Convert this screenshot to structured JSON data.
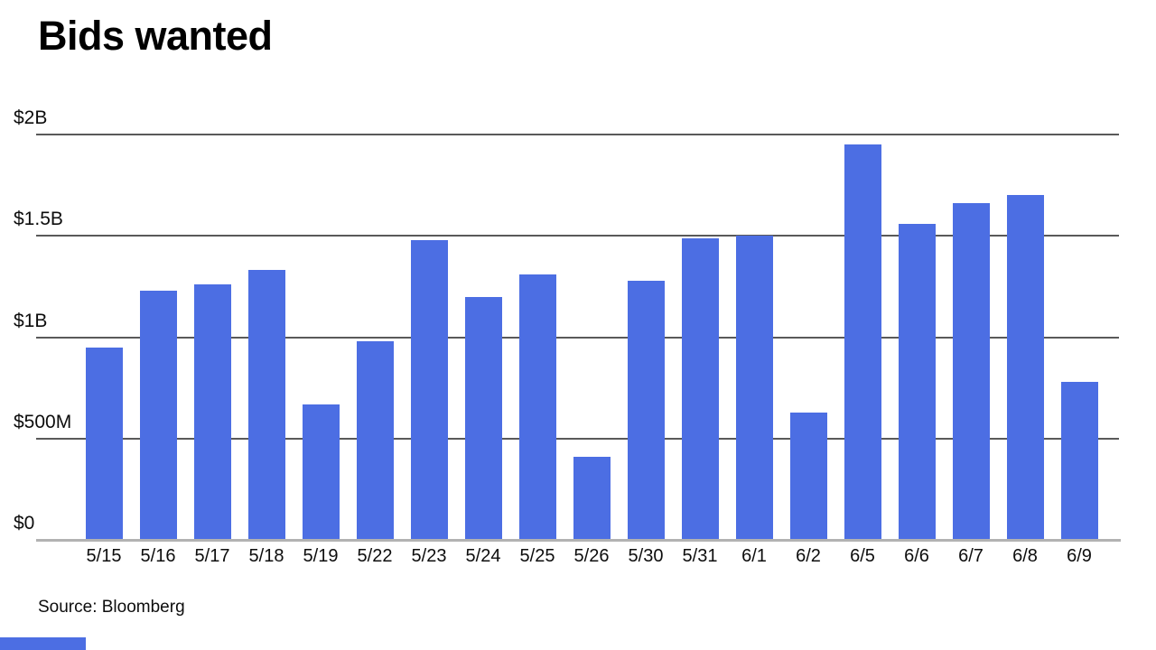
{
  "title": "Bids wanted",
  "source": "Source: Bloomberg",
  "colors": {
    "bar": "#4c6ee3",
    "gridline": "#595959",
    "axis_line": "#b2b2b2",
    "text": "#0d0d0d",
    "accent_strip": "#4c6ee3"
  },
  "chart_data": {
    "type": "bar",
    "title": "Bids wanted",
    "xlabel": "",
    "ylabel": "",
    "legend": "none",
    "grid": "horizontal",
    "ylim_millions": [
      0,
      2000
    ],
    "y_ticks": [
      {
        "label": "$2B",
        "value_millions": 2000
      },
      {
        "label": "$1.5B",
        "value_millions": 1500
      },
      {
        "label": "$1B",
        "value_millions": 1000
      },
      {
        "label": "$500M",
        "value_millions": 500
      },
      {
        "label": "$0",
        "value_millions": 0
      }
    ],
    "categories": [
      "5/15",
      "5/16",
      "5/17",
      "5/18",
      "5/19",
      "5/22",
      "5/23",
      "5/24",
      "5/25",
      "5/26",
      "5/30",
      "5/31",
      "6/1",
      "6/2",
      "6/5",
      "6/6",
      "6/7",
      "6/8",
      "6/9"
    ],
    "values_millions": [
      950,
      1230,
      1260,
      1330,
      670,
      980,
      1480,
      1200,
      1310,
      410,
      1280,
      1490,
      1500,
      630,
      1950,
      1560,
      1660,
      1700,
      780
    ]
  }
}
